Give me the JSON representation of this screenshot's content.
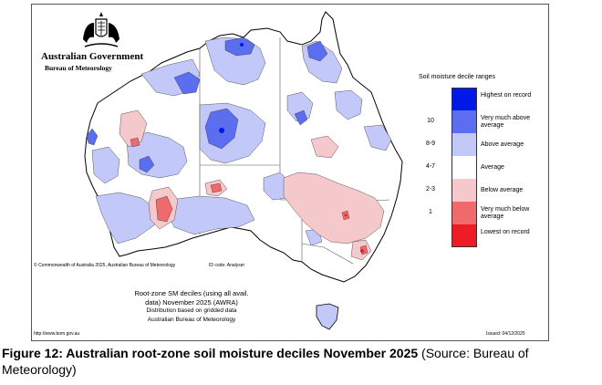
{
  "header": {
    "government": "Australian Government",
    "bureau": "Bureau of Meteorology"
  },
  "legend": {
    "title": "Soil moisture decile ranges",
    "categories": [
      {
        "label": "Highest on record",
        "tick": "",
        "color": "#0019e6"
      },
      {
        "label": "Very much above average",
        "tick": "10",
        "color": "#5b6ef0"
      },
      {
        "label": "Above average",
        "tick": "8-9",
        "color": "#c2c8f7"
      },
      {
        "label": "Average",
        "tick": "4-7",
        "color": "#ffffff"
      },
      {
        "label": "Below average",
        "tick": "2-3",
        "color": "#f5c8cb"
      },
      {
        "label": "Very much below average",
        "tick": "1",
        "color": "#ee6a6d"
      },
      {
        "label": "Lowest on record",
        "tick": "",
        "color": "#ee1c24"
      }
    ]
  },
  "map": {
    "copyright": "© Commonwealth of Australia 2025, Australian Bureau of Meteorology",
    "id_code": "ID code: Analyser",
    "caption_line1": "Root-zone SM deciles (using all avail.",
    "caption_line2": "data) November 2025 (AWRA)",
    "caption_line3": "Distribution based on gridded data",
    "caption_line4": "Australian Bureau of Meteorology",
    "url": "http://www.bom.gov.au",
    "issued": "Issued: 04/12/2025"
  },
  "figure": {
    "caption_bold": "Figure 12: Australian root-zone soil moisture deciles November 2025",
    "caption_source": " (Source: Bureau of Meteorology)"
  }
}
